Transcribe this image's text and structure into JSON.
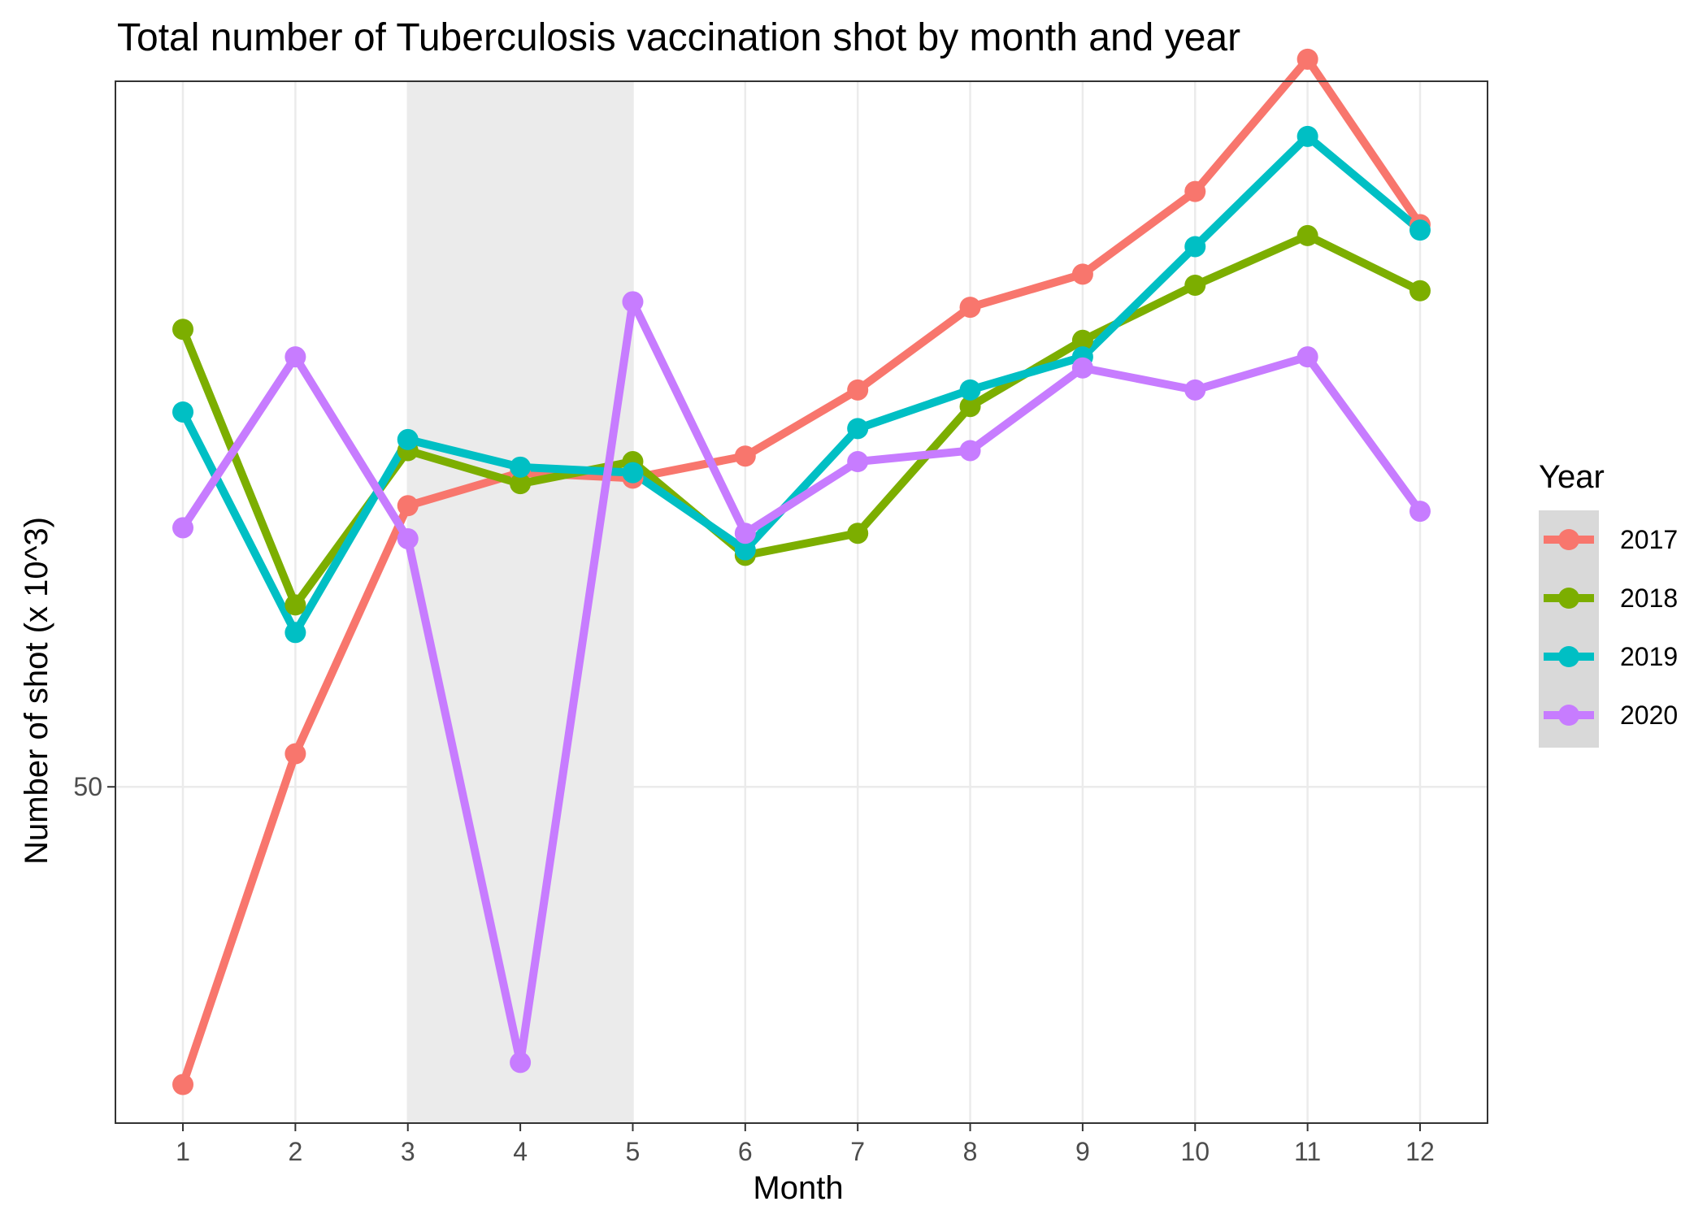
{
  "chart_data": {
    "type": "line",
    "title": "Total number of Tuberculosis vaccination shot by month and year",
    "xlabel": "Month",
    "ylabel": "Number of shot (x 10^3)",
    "x": [
      1,
      2,
      3,
      4,
      5,
      6,
      7,
      8,
      9,
      10,
      11,
      12
    ],
    "x_tick_labels": [
      "1",
      "2",
      "3",
      "4",
      "5",
      "6",
      "7",
      "8",
      "9",
      "10",
      "11",
      "12"
    ],
    "y_ticks": [
      50
    ],
    "y_tick_labels": [
      "50"
    ],
    "xlim": [
      0.4,
      12.6
    ],
    "ylim": [
      43.9,
      62.8
    ],
    "grid": true,
    "shaded_region": {
      "x_start": 3,
      "x_end": 5,
      "color": "#ebebeb"
    },
    "legend": {
      "title": "Year",
      "position": "right"
    },
    "series": [
      {
        "name": "2017",
        "color": "#F8766D",
        "values": [
          44.6,
          50.6,
          55.1,
          55.7,
          55.6,
          56.0,
          57.2,
          58.7,
          59.3,
          60.8,
          63.2,
          60.2
        ]
      },
      {
        "name": "2018",
        "color": "#7CAE00",
        "values": [
          58.3,
          53.3,
          56.1,
          55.5,
          55.9,
          54.2,
          54.6,
          56.9,
          58.1,
          59.1,
          60.0,
          59.0
        ]
      },
      {
        "name": "2019",
        "color": "#00BFC4",
        "values": [
          56.8,
          52.8,
          56.3,
          55.8,
          55.7,
          54.3,
          56.5,
          57.2,
          57.8,
          59.8,
          61.8,
          60.1
        ]
      },
      {
        "name": "2020",
        "color": "#C77CFF",
        "values": [
          54.7,
          57.8,
          54.5,
          45.0,
          58.8,
          54.6,
          55.9,
          56.1,
          57.6,
          57.2,
          57.8,
          55.0
        ]
      }
    ]
  }
}
